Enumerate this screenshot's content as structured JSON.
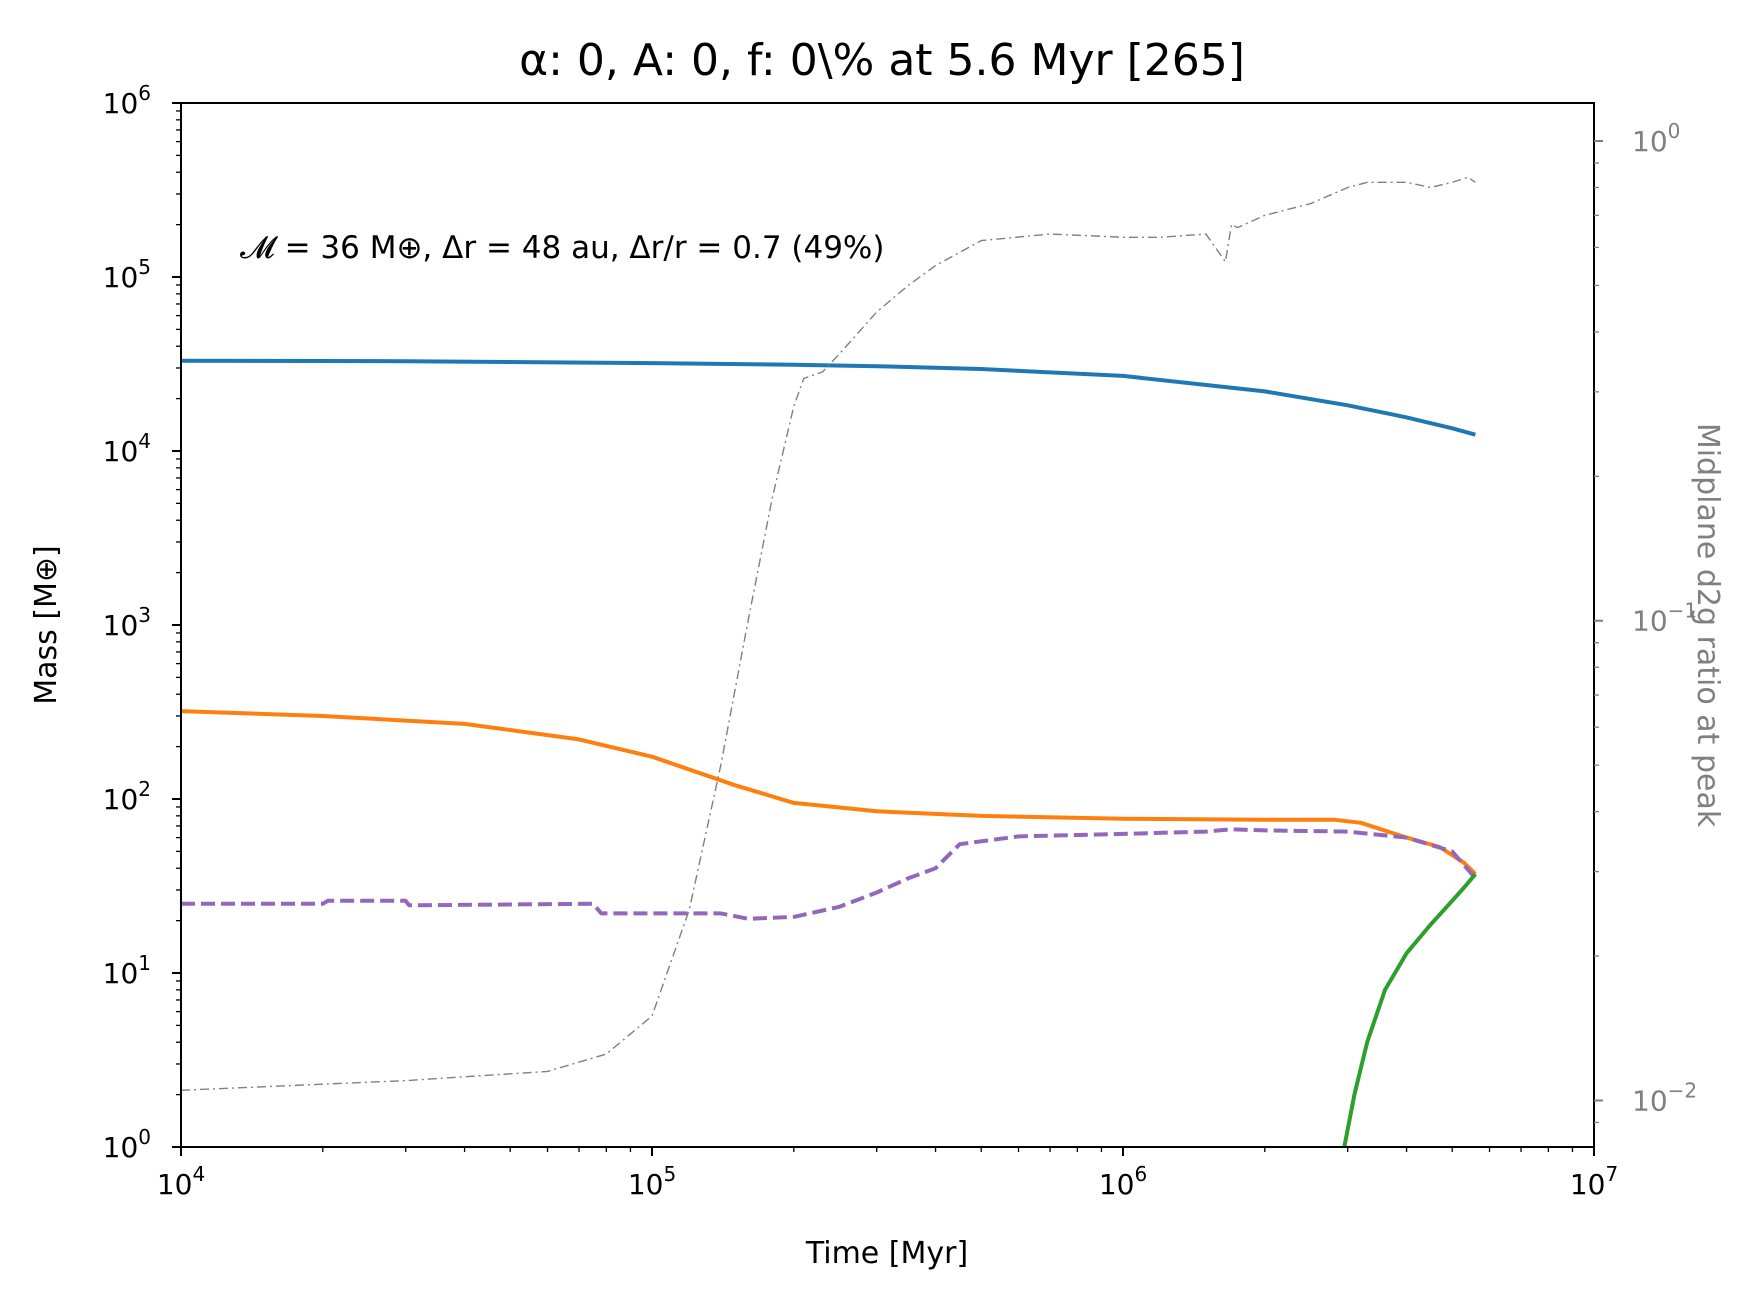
{
  "chart_data": {
    "type": "line",
    "title": "α: 0, A: 0, f: 0\\% at 5.6 Myr [265]",
    "annotation": "𝓜 = 36 M⊕, Δr = 48 au, Δr/r = 0.7 (49%)",
    "xlabel": "Time [Myr]",
    "ylabel": "Mass [M⊕]",
    "y2label": "Midplane d2g ratio at peak",
    "xscale": "log",
    "yscale": "log",
    "y2scale": "log",
    "xlim": [
      10000,
      10000000
    ],
    "ylim": [
      1,
      1000000
    ],
    "y2lim": [
      0.008,
      1.2
    ],
    "grid": false,
    "x_ticks": [
      {
        "value": 10000,
        "base": "10",
        "exp": "4"
      },
      {
        "value": 100000,
        "base": "10",
        "exp": "5"
      },
      {
        "value": 1000000,
        "base": "10",
        "exp": "6"
      },
      {
        "value": 10000000,
        "base": "10",
        "exp": "7"
      }
    ],
    "y_ticks": [
      {
        "value": 1,
        "base": "10",
        "exp": "0"
      },
      {
        "value": 10,
        "base": "10",
        "exp": "1"
      },
      {
        "value": 100,
        "base": "10",
        "exp": "2"
      },
      {
        "value": 1000,
        "base": "10",
        "exp": "3"
      },
      {
        "value": 10000,
        "base": "10",
        "exp": "4"
      },
      {
        "value": 100000,
        "base": "10",
        "exp": "5"
      },
      {
        "value": 1000000,
        "base": "10",
        "exp": "6"
      }
    ],
    "y2_ticks": [
      {
        "value": 0.01,
        "base": "10",
        "exp": "−2"
      },
      {
        "value": 0.1,
        "base": "10",
        "exp": "−1"
      },
      {
        "value": 1,
        "base": "10",
        "exp": "0"
      }
    ],
    "colors": {
      "blue": "#1f77b4",
      "orange": "#ff7f0e",
      "green": "#2ca02c",
      "purple": "#9467bd",
      "gray": "#808080",
      "axis": "#000000"
    },
    "series": [
      {
        "color": "#1f77b4",
        "style": "solid",
        "axis": "left",
        "x": [
          10000,
          30000,
          100000,
          200000,
          300000,
          500000,
          1000000,
          2000000,
          3000000,
          4000000,
          5000000,
          5600000
        ],
        "y": [
          33000,
          32800,
          32000,
          31300,
          30700,
          29600,
          27000,
          22000,
          18300,
          15600,
          13500,
          12400
        ]
      },
      {
        "color": "#ff7f0e",
        "style": "solid",
        "axis": "left",
        "x": [
          10000,
          20000,
          40000,
          70000,
          100000,
          150000,
          200000,
          300000,
          500000,
          1000000,
          2000000,
          2800000,
          3200000,
          4000000,
          4700000,
          5300000,
          5600000
        ],
        "y": [
          320,
          300,
          270,
          220,
          175,
          120,
          95,
          85,
          80,
          77,
          76,
          76,
          73,
          60,
          53,
          43,
          37
        ]
      },
      {
        "color": "#9467bd",
        "style": "dashed",
        "axis": "left",
        "x": [
          10000,
          20000,
          20500,
          30000,
          30500,
          75000,
          78000,
          140000,
          160000,
          200000,
          250000,
          300000,
          350000,
          400000,
          450000,
          600000,
          1000000,
          1500000,
          1700000,
          2000000,
          3000000,
          4000000,
          5000000,
          5600000
        ],
        "y": [
          25,
          25,
          26,
          26,
          24.5,
          25,
          22,
          22,
          20.5,
          21,
          24,
          29,
          35,
          40,
          55,
          61,
          63,
          65,
          67,
          66,
          65,
          60,
          50,
          35
        ]
      },
      {
        "color": "#2ca02c",
        "style": "solid",
        "axis": "left",
        "x": [
          2950000,
          3100000,
          3300000,
          3600000,
          4000000,
          4500000,
          5000000,
          5300000,
          5600000
        ],
        "y": [
          1,
          2,
          4,
          8,
          13,
          19,
          26,
          31,
          37
        ]
      },
      {
        "color": "#808080",
        "style": "dashdot",
        "axis": "right",
        "x": [
          10000,
          30000,
          60000,
          80000,
          100000,
          120000,
          140000,
          160000,
          180000,
          200000,
          210000,
          230000,
          250000,
          300000,
          350000,
          400000,
          500000,
          700000,
          1000000,
          1200000,
          1500000,
          1650000,
          1700000,
          1750000,
          2000000,
          2500000,
          3000000,
          3300000,
          4000000,
          4500000,
          5000000,
          5400000,
          5600000
        ],
        "y": [
          0.0105,
          0.011,
          0.0115,
          0.0125,
          0.015,
          0.025,
          0.05,
          0.1,
          0.18,
          0.28,
          0.32,
          0.33,
          0.36,
          0.44,
          0.5,
          0.55,
          0.62,
          0.64,
          0.63,
          0.63,
          0.64,
          0.56,
          0.67,
          0.66,
          0.7,
          0.74,
          0.8,
          0.82,
          0.82,
          0.8,
          0.82,
          0.84,
          0.82
        ]
      }
    ]
  }
}
